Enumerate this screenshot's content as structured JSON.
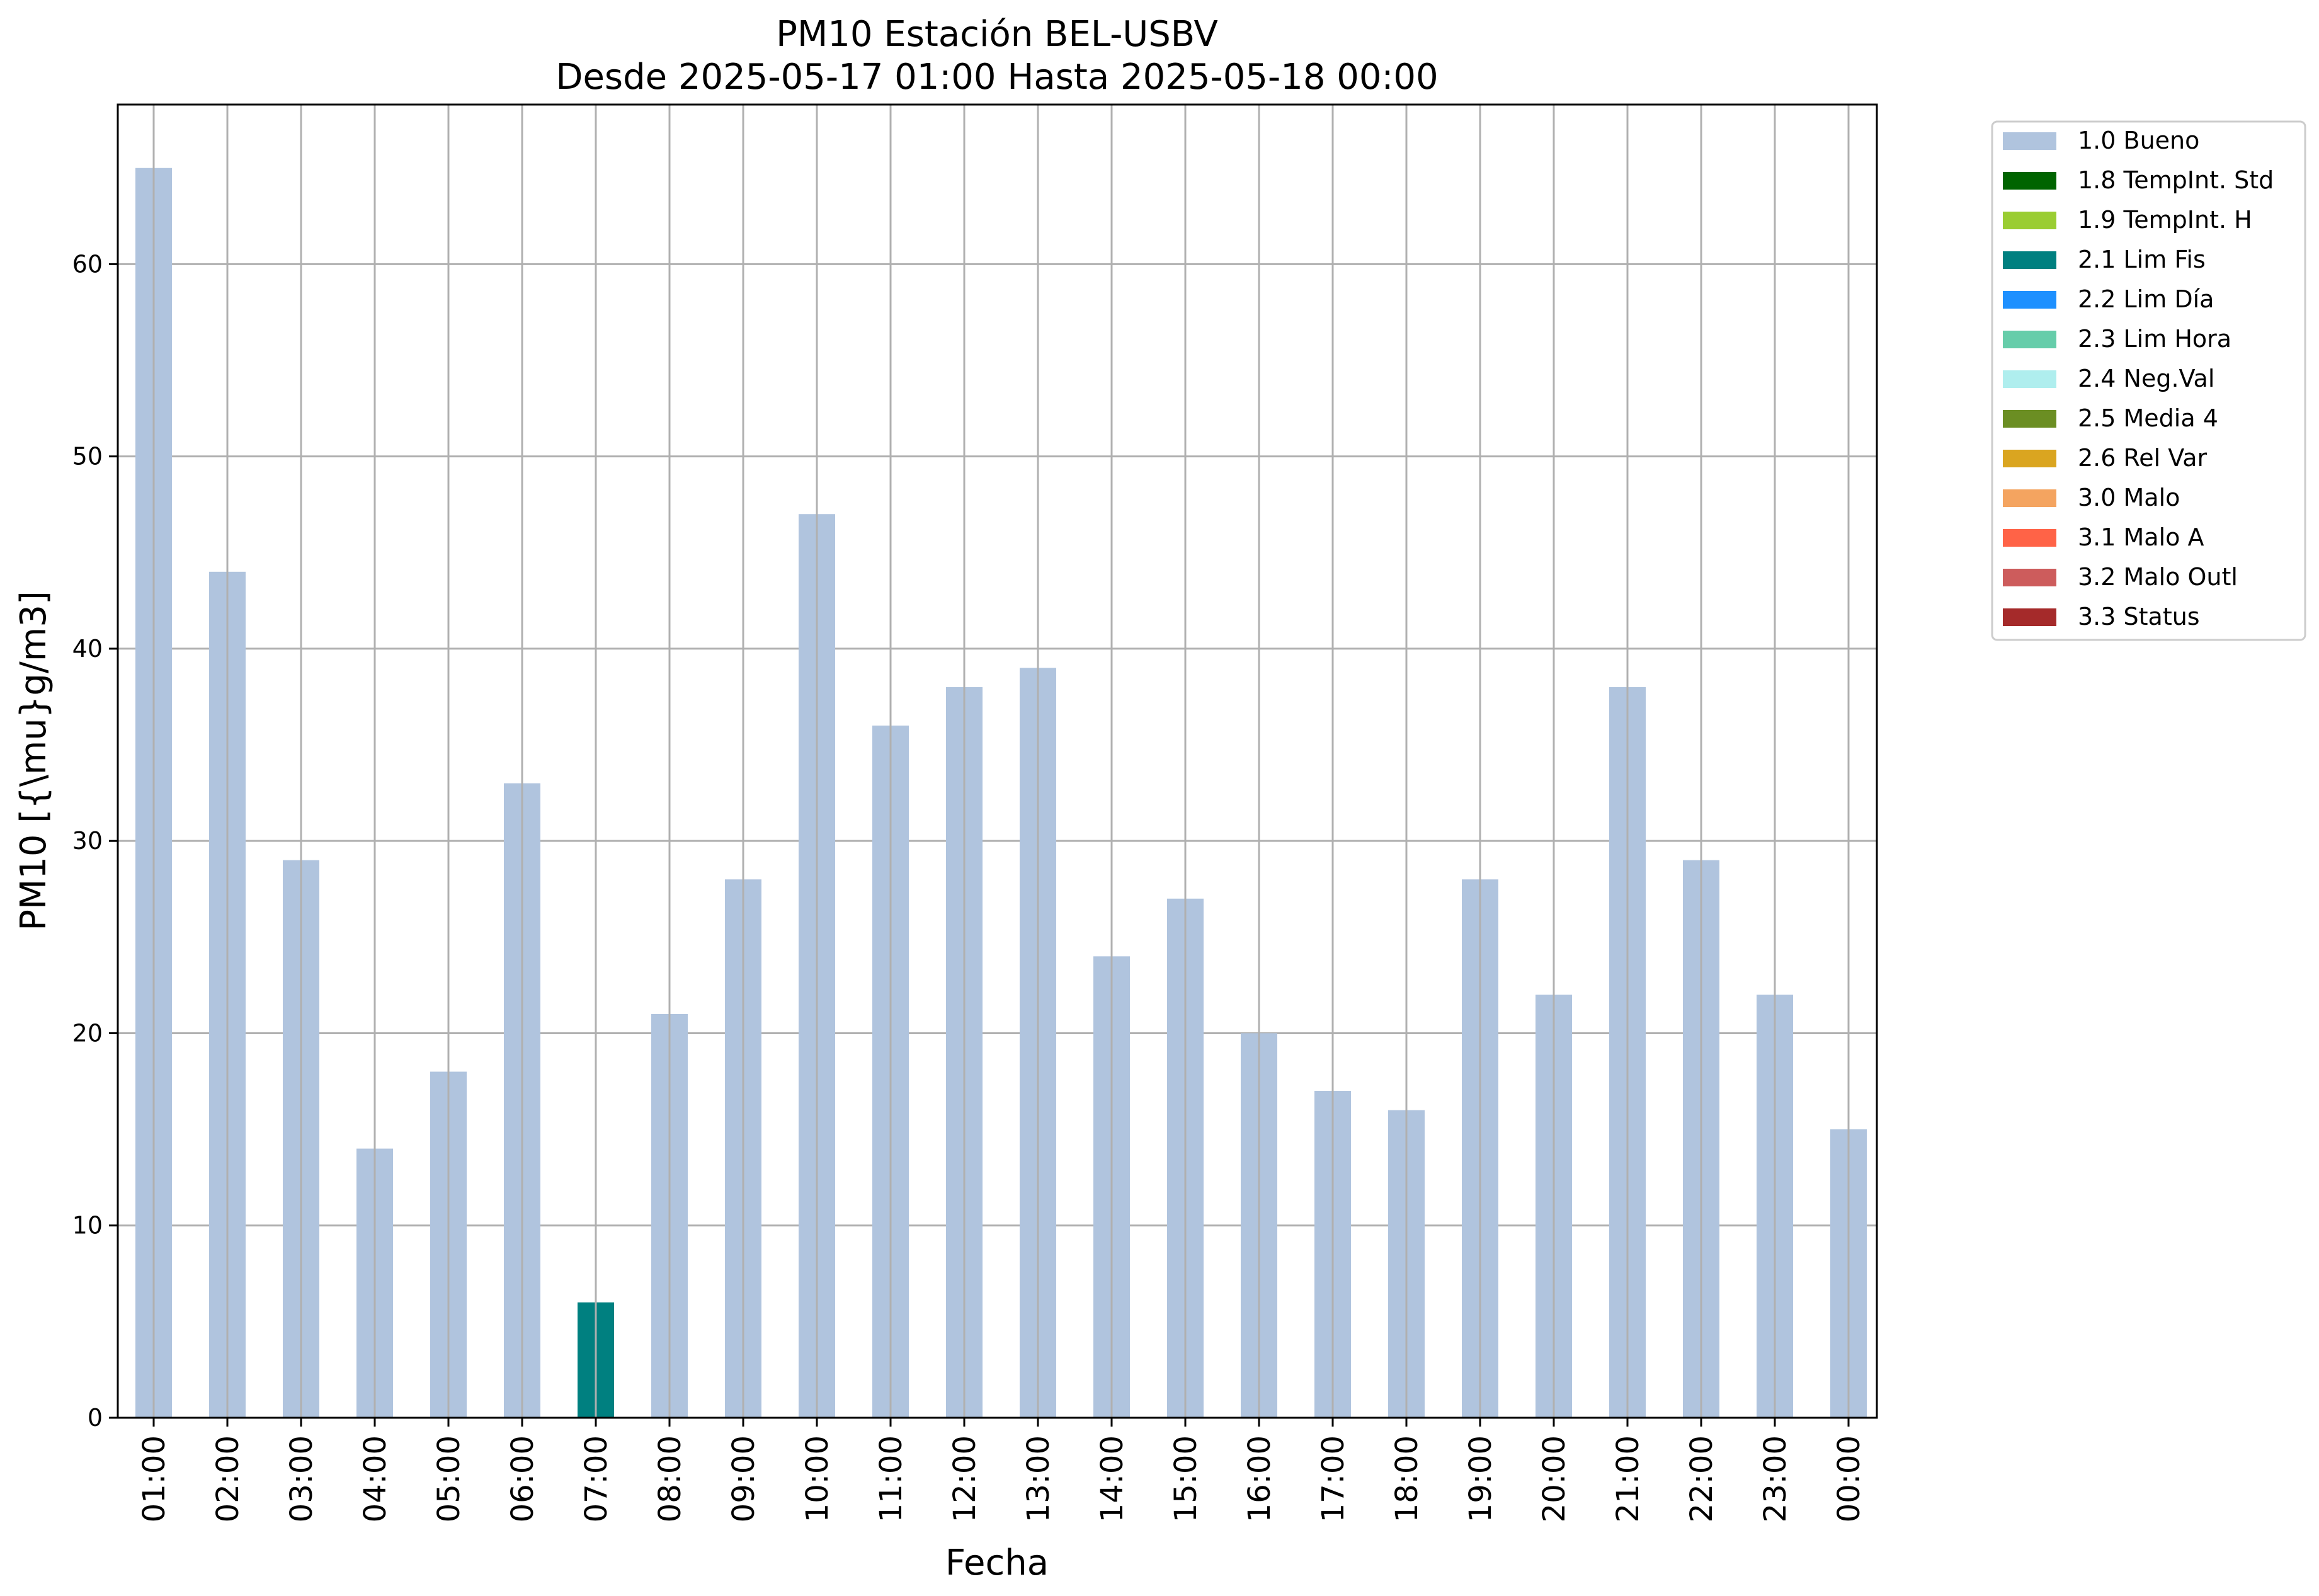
{
  "chart_data": {
    "type": "bar",
    "title": "PM10 Estación BEL-USBV",
    "subtitle": "Desde 2025-05-17 01:00 Hasta 2025-05-18 00:00",
    "xlabel": "Fecha",
    "ylabel": "PM10 [{\\mu}g/m3]",
    "ylim": [
      0,
      68.3
    ],
    "yticks": [
      0,
      10,
      20,
      30,
      40,
      50,
      60
    ],
    "grid": true,
    "legend_position": "outside-top-right",
    "categories": [
      "01:00",
      "02:00",
      "03:00",
      "04:00",
      "05:00",
      "06:00",
      "07:00",
      "08:00",
      "09:00",
      "10:00",
      "11:00",
      "12:00",
      "13:00",
      "14:00",
      "15:00",
      "16:00",
      "17:00",
      "18:00",
      "19:00",
      "20:00",
      "21:00",
      "22:00",
      "23:00",
      "00:00"
    ],
    "values": [
      65,
      44,
      29,
      14,
      18,
      33,
      6,
      21,
      28,
      47,
      36,
      38,
      39,
      24,
      27,
      20,
      17,
      16,
      28,
      22,
      38,
      29,
      22,
      15
    ],
    "flags": [
      "1.0 Bueno",
      "1.0 Bueno",
      "1.0 Bueno",
      "1.0 Bueno",
      "1.0 Bueno",
      "1.0 Bueno",
      "2.1 Lim Fis",
      "1.0 Bueno",
      "1.0 Bueno",
      "1.0 Bueno",
      "1.0 Bueno",
      "1.0 Bueno",
      "1.0 Bueno",
      "1.0 Bueno",
      "1.0 Bueno",
      "1.0 Bueno",
      "1.0 Bueno",
      "1.0 Bueno",
      "1.0 Bueno",
      "1.0 Bueno",
      "1.0 Bueno",
      "1.0 Bueno",
      "1.0 Bueno",
      "1.0 Bueno"
    ],
    "legend": [
      {
        "label": "1.0 Bueno",
        "color": "#b0c4de"
      },
      {
        "label": "1.8 TempInt. Std",
        "color": "#006400"
      },
      {
        "label": "1.9 TempInt. H",
        "color": "#9acd32"
      },
      {
        "label": "2.1 Lim Fis",
        "color": "#008080"
      },
      {
        "label": "2.2 Lim Día",
        "color": "#1e90ff"
      },
      {
        "label": "2.3 Lim Hora",
        "color": "#66cdaa"
      },
      {
        "label": "2.4 Neg.Val",
        "color": "#afeeee"
      },
      {
        "label": "2.5 Media 4",
        "color": "#6b8e23"
      },
      {
        "label": "2.6 Rel Var",
        "color": "#daa520"
      },
      {
        "label": "3.0 Malo",
        "color": "#f4a460"
      },
      {
        "label": "3.1 Malo A",
        "color": "#ff6347"
      },
      {
        "label": "3.2 Malo Outl",
        "color": "#cd5c5c"
      },
      {
        "label": "3.3 Status",
        "color": "#a52a2a"
      }
    ]
  }
}
